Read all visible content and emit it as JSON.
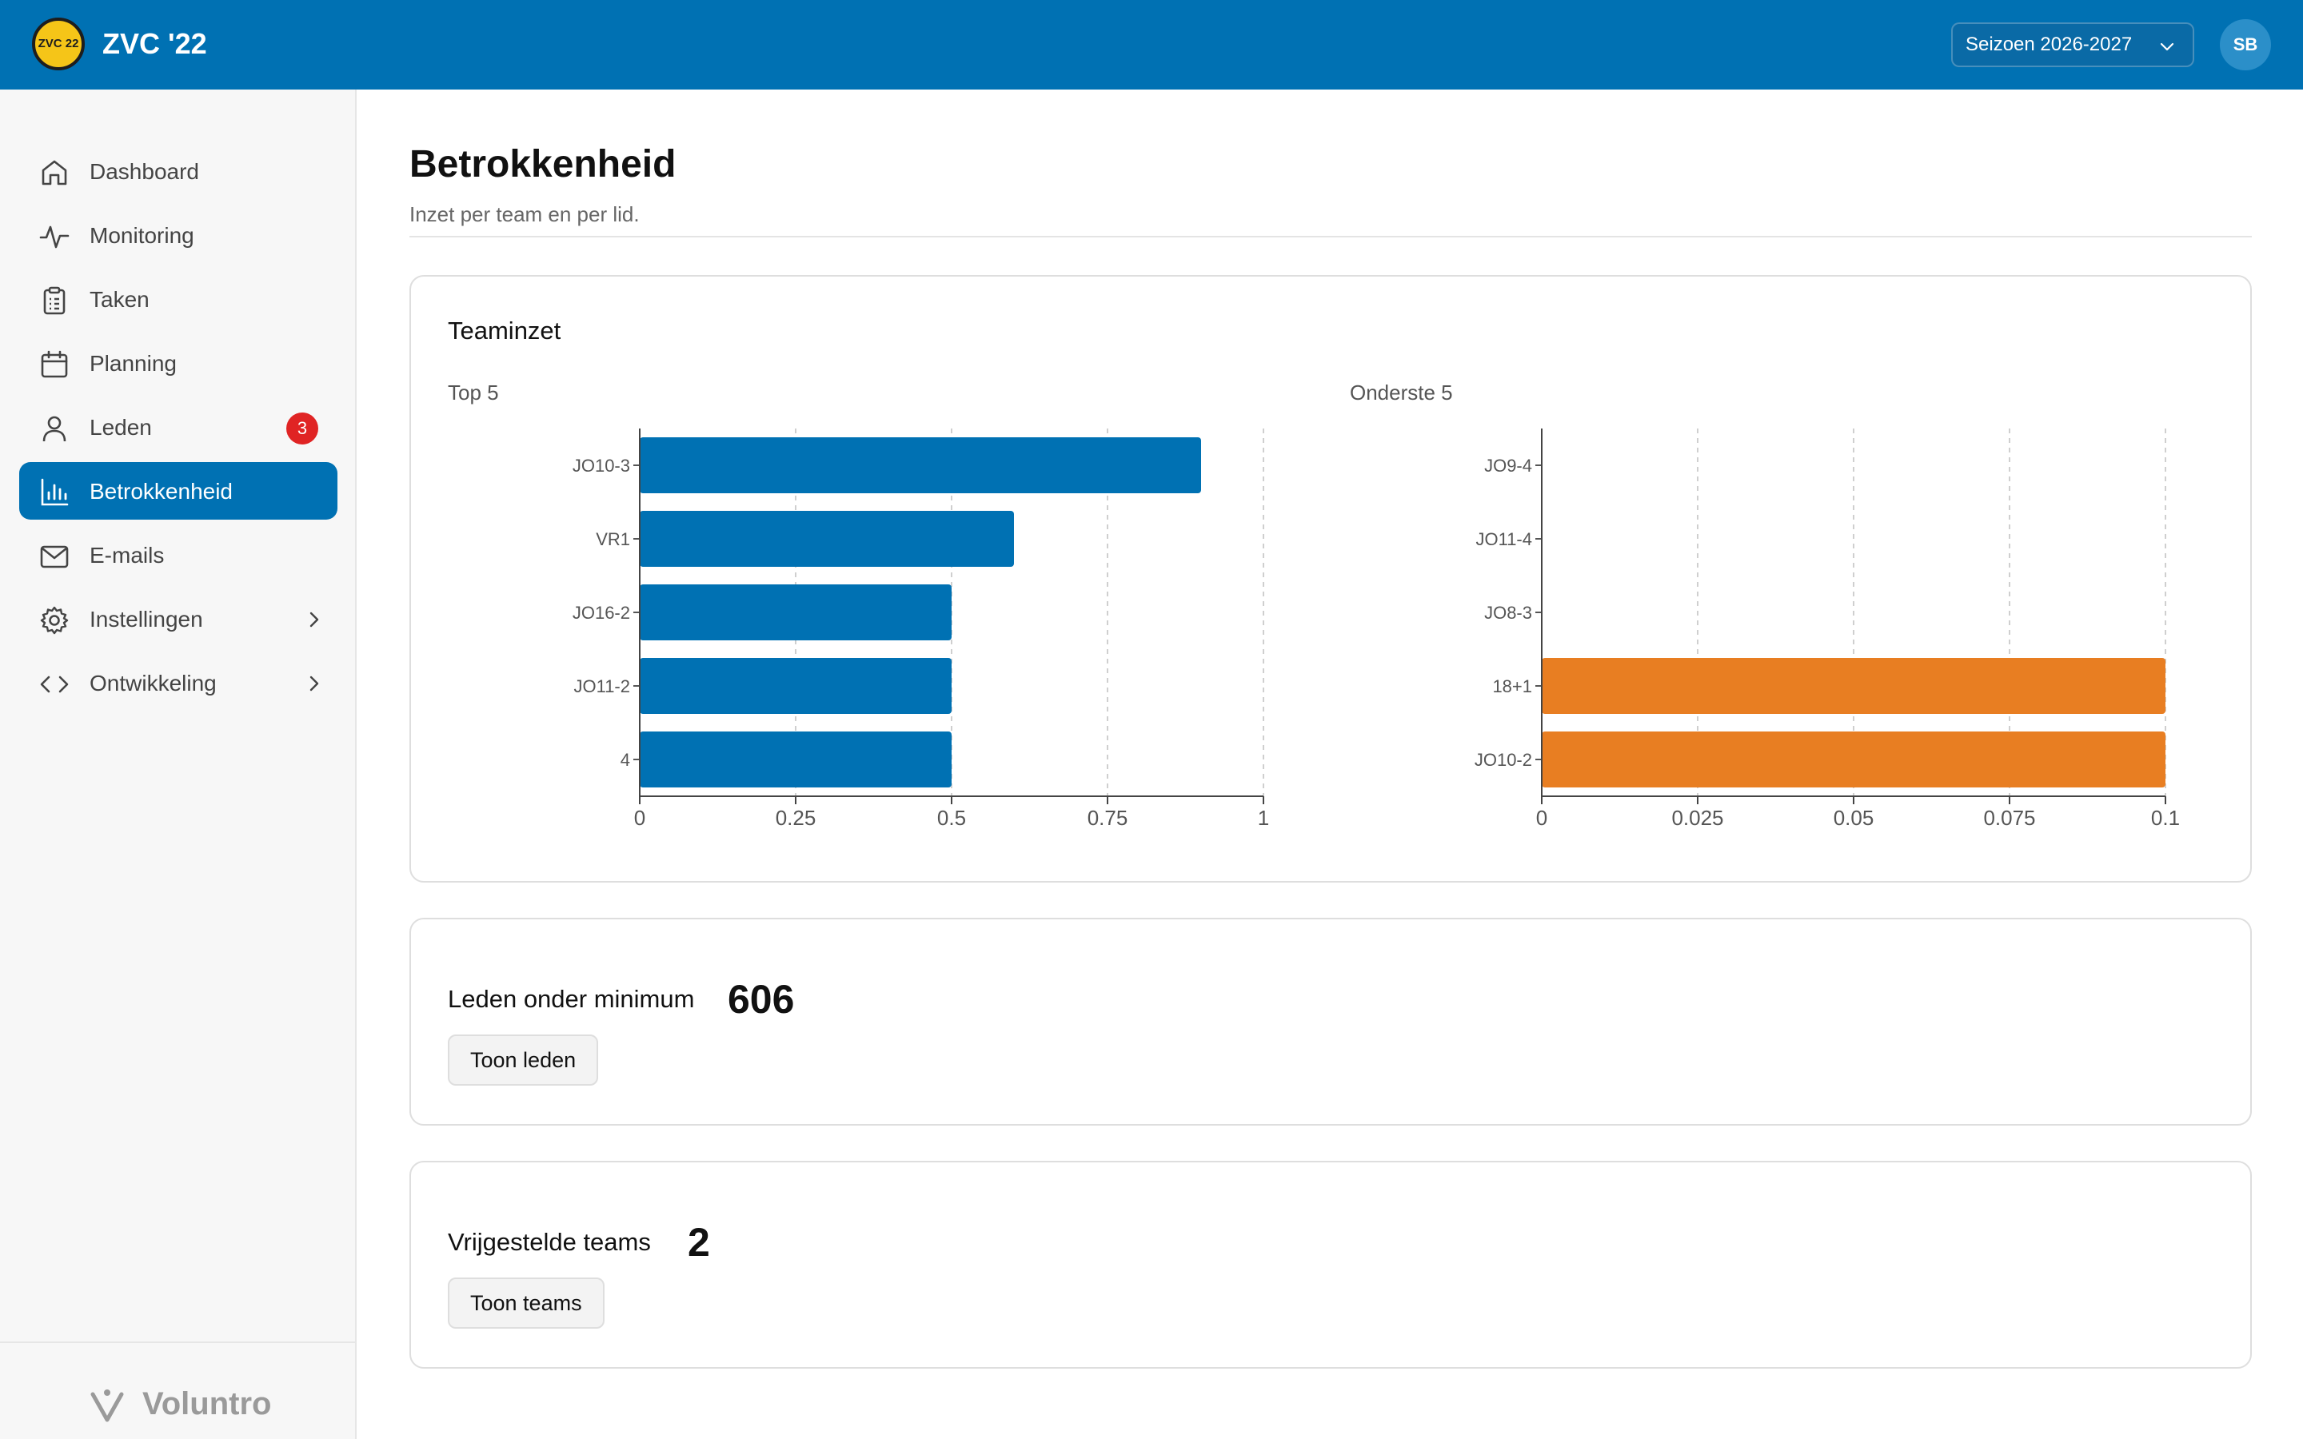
{
  "header": {
    "logo_text": "ZVC 22",
    "app_title": "ZVC '22",
    "season_label": "Seizoen 2026-2027",
    "avatar_initials": "SB",
    "brand_color": "#0071b3"
  },
  "sidebar": {
    "items": [
      {
        "label": "Dashboard",
        "icon": "home-icon"
      },
      {
        "label": "Monitoring",
        "icon": "activity-icon"
      },
      {
        "label": "Taken",
        "icon": "clipboard-icon"
      },
      {
        "label": "Planning",
        "icon": "calendar-icon"
      },
      {
        "label": "Leden",
        "icon": "user-icon",
        "badge": "3"
      },
      {
        "label": "Betrokkenheid",
        "icon": "bar-chart-icon",
        "active": true
      },
      {
        "label": "E-mails",
        "icon": "mail-icon"
      },
      {
        "label": "Instellingen",
        "icon": "gear-icon",
        "has_submenu": true
      },
      {
        "label": "Ontwikkeling",
        "icon": "code-icon",
        "has_submenu": true
      }
    ],
    "footer_brand": "Voluntro"
  },
  "main": {
    "title": "Betrokkenheid",
    "subtitle": "Inzet per team en per lid.",
    "team_card": {
      "title": "Teaminzet",
      "top_label": "Top 5",
      "bottom_label": "Onderste 5"
    },
    "members_card": {
      "label": "Leden onder minimum",
      "value": "606",
      "button": "Toon leden"
    },
    "teams_card": {
      "label": "Vrijgestelde teams",
      "value": "2",
      "button": "Toon teams"
    }
  },
  "chart_data": [
    {
      "type": "bar",
      "orientation": "horizontal",
      "title": "Top 5",
      "categories": [
        "JO10-3",
        "VR1",
        "JO16-2",
        "JO11-2",
        "4"
      ],
      "values": [
        0.9,
        0.6,
        0.5,
        0.5,
        0.5
      ],
      "xlim": [
        0,
        1
      ],
      "xticks": [
        "0",
        "0.25",
        "0.5",
        "0.75",
        "1"
      ],
      "xtick_values": [
        0,
        0.25,
        0.5,
        0.75,
        1
      ],
      "grid": "vertical dashed",
      "color": "#0071b3"
    },
    {
      "type": "bar",
      "orientation": "horizontal",
      "title": "Onderste 5",
      "categories": [
        "JO9-4",
        "JO11-4",
        "JO8-3",
        "18+1",
        "JO10-2"
      ],
      "values": [
        0,
        0,
        0,
        0.1,
        0.1
      ],
      "xlim": [
        0,
        0.1
      ],
      "xticks": [
        "0",
        "0.025",
        "0.05",
        "0.075",
        "0.1"
      ],
      "xtick_values": [
        0,
        0.025,
        0.05,
        0.075,
        0.1
      ],
      "grid": "vertical dashed",
      "color": "#e87e22"
    }
  ]
}
